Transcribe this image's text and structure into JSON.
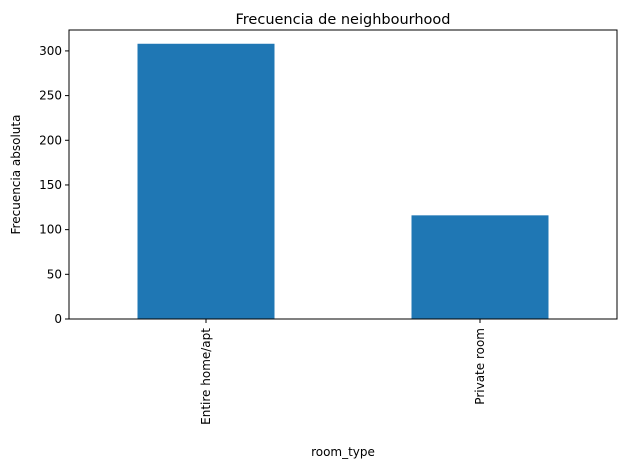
{
  "chart_data": {
    "type": "bar",
    "title": "Frecuencia de neighbourhood",
    "xlabel": "room_type",
    "ylabel": "Frecuencia absoluta",
    "categories": [
      "Entire home/apt",
      "Private room"
    ],
    "values": [
      308,
      116
    ],
    "ylim": [
      0,
      323.4
    ],
    "yticks": [
      0,
      50,
      100,
      150,
      200,
      250,
      300
    ],
    "bar_color": "#1f77b4",
    "grid": false,
    "legend": "none"
  }
}
